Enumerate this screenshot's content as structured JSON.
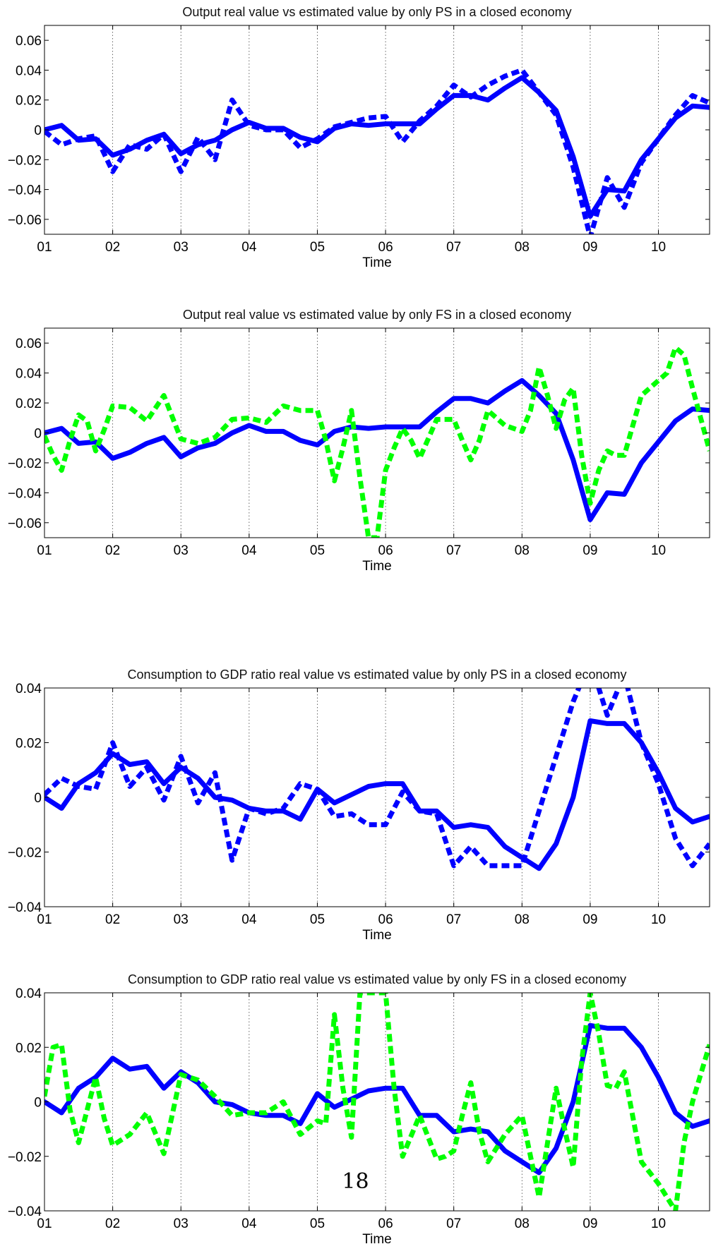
{
  "page_number": "18",
  "colors": {
    "real": "#0000ff",
    "est_ps": "#0000ff",
    "est_fs": "#00ff00"
  },
  "chart_data": [
    {
      "type": "line",
      "title": "Output real value vs estimated value by only PS in a closed economy",
      "xlabel": "Time",
      "ylabel": "",
      "x_ticks": [
        1,
        2,
        3,
        4,
        5,
        6,
        7,
        8,
        9,
        10
      ],
      "x_tick_labels": [
        "01",
        "02",
        "03",
        "04",
        "05",
        "06",
        "07",
        "08",
        "09",
        "10"
      ],
      "xlim": [
        1,
        10.75
      ],
      "ylim": [
        -0.07,
        0.07
      ],
      "y_ticks": [
        -0.06,
        -0.04,
        -0.02,
        0,
        0.02,
        0.04,
        0.06
      ],
      "y_tick_labels": [
        "−0.06",
        "−0.04",
        "−0.02",
        "0",
        "0.02",
        "0.04",
        "0.06"
      ],
      "grid": "x-dotted",
      "series": [
        {
          "style": "solid",
          "color": "#0000ff",
          "x": [
            1,
            1.25,
            1.5,
            1.75,
            2,
            2.25,
            2.5,
            2.75,
            3,
            3.25,
            3.5,
            3.75,
            4,
            4.25,
            4.5,
            4.75,
            5,
            5.25,
            5.5,
            5.75,
            6,
            6.25,
            6.5,
            6.75,
            7,
            7.25,
            7.5,
            7.75,
            8,
            8.25,
            8.5,
            8.75,
            9,
            9.25,
            9.5,
            9.75,
            10,
            10.25,
            10.5,
            10.75
          ],
          "y": [
            0,
            0.003,
            -0.007,
            -0.006,
            -0.017,
            -0.013,
            -0.007,
            -0.003,
            -0.016,
            -0.01,
            -0.007,
            0,
            0.005,
            0.001,
            0.001,
            -0.005,
            -0.008,
            0.001,
            0.004,
            0.003,
            0.004,
            0.004,
            0.004,
            0.014,
            0.023,
            0.023,
            0.02,
            0.028,
            0.035,
            0.025,
            0.013,
            -0.018,
            -0.058,
            -0.04,
            -0.041,
            -0.02,
            -0.006,
            0.008,
            0.016,
            0.015
          ]
        },
        {
          "style": "dashed",
          "color": "#0000ff",
          "x": [
            1,
            1.25,
            1.5,
            1.75,
            2,
            2.25,
            2.5,
            2.75,
            3,
            3.25,
            3.5,
            3.75,
            4,
            4.25,
            4.5,
            4.75,
            5,
            5.25,
            5.5,
            5.75,
            6,
            6.25,
            6.5,
            6.75,
            7,
            7.25,
            7.5,
            7.75,
            8,
            8.25,
            8.5,
            8.75,
            9,
            9.25,
            9.5,
            9.75,
            10,
            10.25,
            10.5,
            10.75
          ],
          "y": [
            -0.001,
            -0.01,
            -0.006,
            -0.004,
            -0.028,
            -0.01,
            -0.013,
            -0.003,
            -0.028,
            -0.005,
            -0.02,
            0.02,
            0.003,
            0,
            0,
            -0.012,
            -0.006,
            0.002,
            0.005,
            0.008,
            0.009,
            -0.008,
            0.006,
            0.016,
            0.03,
            0.022,
            0.03,
            0.036,
            0.04,
            0.025,
            0.01,
            -0.025,
            -0.072,
            -0.032,
            -0.052,
            -0.022,
            -0.006,
            0.01,
            0.023,
            0.018
          ]
        }
      ]
    },
    {
      "type": "line",
      "title": "Output real value vs estimated value by only FS in a closed economy",
      "xlabel": "Time",
      "ylabel": "",
      "x_ticks": [
        1,
        2,
        3,
        4,
        5,
        6,
        7,
        8,
        9,
        10
      ],
      "x_tick_labels": [
        "01",
        "02",
        "03",
        "04",
        "05",
        "06",
        "07",
        "08",
        "09",
        "10"
      ],
      "xlim": [
        1,
        10.75
      ],
      "ylim": [
        -0.07,
        0.07
      ],
      "y_ticks": [
        -0.06,
        -0.04,
        -0.02,
        0,
        0.02,
        0.04,
        0.06
      ],
      "y_tick_labels": [
        "−0.06",
        "−0.04",
        "−0.02",
        "0",
        "0.02",
        "0.04",
        "0.06"
      ],
      "grid": "x-dotted",
      "series": [
        {
          "style": "solid",
          "color": "#0000ff",
          "x": [
            1,
            1.25,
            1.5,
            1.75,
            2,
            2.25,
            2.5,
            2.75,
            3,
            3.25,
            3.5,
            3.75,
            4,
            4.25,
            4.5,
            4.75,
            5,
            5.25,
            5.5,
            5.75,
            6,
            6.25,
            6.5,
            6.75,
            7,
            7.25,
            7.5,
            7.75,
            8,
            8.25,
            8.5,
            8.75,
            9,
            9.25,
            9.5,
            9.75,
            10,
            10.25,
            10.5,
            10.75
          ],
          "y": [
            0,
            0.003,
            -0.007,
            -0.006,
            -0.017,
            -0.013,
            -0.007,
            -0.003,
            -0.016,
            -0.01,
            -0.007,
            0,
            0.005,
            0.001,
            0.001,
            -0.005,
            -0.008,
            0.001,
            0.004,
            0.003,
            0.004,
            0.004,
            0.004,
            0.014,
            0.023,
            0.023,
            0.02,
            0.028,
            0.035,
            0.025,
            0.013,
            -0.018,
            -0.058,
            -0.04,
            -0.041,
            -0.02,
            -0.006,
            0.008,
            0.016,
            0.015
          ]
        },
        {
          "style": "dashed",
          "color": "#00ff00",
          "x": [
            1,
            1.125,
            1.25,
            1.375,
            1.5,
            1.625,
            1.75,
            1.875,
            2,
            2.25,
            2.5,
            2.75,
            3,
            3.25,
            3.5,
            3.75,
            4,
            4.25,
            4.5,
            4.75,
            5,
            5.125,
            5.25,
            5.375,
            5.5,
            5.625,
            5.75,
            5.875,
            6,
            6.125,
            6.25,
            6.375,
            6.5,
            6.75,
            7,
            7.125,
            7.25,
            7.375,
            7.5,
            7.75,
            8,
            8.125,
            8.25,
            8.375,
            8.5,
            8.625,
            8.75,
            8.875,
            9,
            9.125,
            9.25,
            9.375,
            9.5,
            9.75,
            10,
            10.125,
            10.25,
            10.375,
            10.5,
            10.75
          ],
          "y": [
            -0.002,
            -0.015,
            -0.025,
            -0.005,
            0.012,
            0.008,
            -0.012,
            0.002,
            0.018,
            0.017,
            0.008,
            0.025,
            -0.004,
            -0.007,
            -0.003,
            0.009,
            0.01,
            0.007,
            0.018,
            0.015,
            0.015,
            -0.005,
            -0.032,
            -0.01,
            0.015,
            -0.03,
            -0.07,
            -0.07,
            -0.025,
            -0.01,
            0.003,
            -0.005,
            -0.017,
            0.009,
            0.009,
            -0.005,
            -0.018,
            -0.005,
            0.015,
            0.005,
            0.001,
            0.015,
            0.044,
            0.025,
            0.003,
            0.022,
            0.03,
            -0.015,
            -0.047,
            -0.025,
            -0.012,
            -0.015,
            -0.015,
            0.025,
            0.035,
            0.04,
            0.057,
            0.052,
            0.03,
            -0.012
          ]
        }
      ]
    },
    {
      "type": "line",
      "title": "Consumption to GDP ratio real value vs estimated value by only PS in a closed economy",
      "xlabel": "Time",
      "ylabel": "",
      "x_ticks": [
        1,
        2,
        3,
        4,
        5,
        6,
        7,
        8,
        9,
        10
      ],
      "x_tick_labels": [
        "01",
        "02",
        "03",
        "04",
        "05",
        "06",
        "07",
        "08",
        "09",
        "10"
      ],
      "xlim": [
        1,
        10.75
      ],
      "ylim": [
        -0.04,
        0.04
      ],
      "y_ticks": [
        -0.04,
        -0.02,
        0,
        0.02,
        0.04
      ],
      "y_tick_labels": [
        "−0.04",
        "−0.02",
        "0",
        "0.02",
        "0.04"
      ],
      "grid": "x-dotted",
      "series": [
        {
          "style": "solid",
          "color": "#0000ff",
          "x": [
            1,
            1.25,
            1.5,
            1.75,
            2,
            2.25,
            2.5,
            2.75,
            3,
            3.25,
            3.5,
            3.75,
            4,
            4.25,
            4.5,
            4.75,
            5,
            5.25,
            5.5,
            5.75,
            6,
            6.25,
            6.5,
            6.75,
            7,
            7.25,
            7.5,
            7.75,
            8,
            8.25,
            8.5,
            8.75,
            9,
            9.25,
            9.5,
            9.75,
            10,
            10.25,
            10.5,
            10.75
          ],
          "y": [
            0,
            -0.004,
            0.005,
            0.009,
            0.016,
            0.012,
            0.013,
            0.005,
            0.011,
            0.007,
            0,
            -0.001,
            -0.004,
            -0.005,
            -0.005,
            -0.008,
            0.003,
            -0.002,
            0.001,
            0.004,
            0.005,
            0.005,
            -0.005,
            -0.005,
            -0.011,
            -0.01,
            -0.011,
            -0.018,
            -0.022,
            -0.026,
            -0.017,
            0,
            0.028,
            0.027,
            0.027,
            0.02,
            0.009,
            -0.004,
            -0.009,
            -0.007
          ]
        },
        {
          "style": "dashed",
          "color": "#0000ff",
          "x": [
            1,
            1.25,
            1.5,
            1.75,
            2,
            2.25,
            2.5,
            2.75,
            3,
            3.25,
            3.5,
            3.75,
            4,
            4.25,
            4.5,
            4.75,
            5,
            5.25,
            5.5,
            5.75,
            6,
            6.25,
            6.5,
            6.75,
            7,
            7.25,
            7.5,
            7.75,
            8,
            8.25,
            8.5,
            8.75,
            9,
            9.25,
            9.5,
            9.75,
            10,
            10.25,
            10.5,
            10.75
          ],
          "y": [
            0.001,
            0.007,
            0.004,
            0.003,
            0.02,
            0.004,
            0.011,
            -0.001,
            0.015,
            -0.002,
            0.009,
            -0.023,
            -0.004,
            -0.006,
            -0.004,
            0.005,
            0.003,
            -0.007,
            -0.006,
            -0.01,
            -0.01,
            0.002,
            -0.005,
            -0.006,
            -0.025,
            -0.018,
            -0.025,
            -0.025,
            -0.025,
            -0.005,
            0.015,
            0.035,
            0.05,
            0.03,
            0.045,
            0.02,
            0.005,
            -0.015,
            -0.025,
            -0.017
          ]
        }
      ]
    },
    {
      "type": "line",
      "title": "Consumption to GDP ratio real value vs estimated value by only FS in a closed economy",
      "xlabel": "Time",
      "ylabel": "",
      "x_ticks": [
        1,
        2,
        3,
        4,
        5,
        6,
        7,
        8,
        9,
        10
      ],
      "x_tick_labels": [
        "01",
        "02",
        "03",
        "04",
        "05",
        "06",
        "07",
        "08",
        "09",
        "10"
      ],
      "xlim": [
        1,
        10.75
      ],
      "ylim": [
        -0.04,
        0.04
      ],
      "y_ticks": [
        -0.04,
        -0.02,
        0,
        0.02,
        0.04
      ],
      "y_tick_labels": [
        "−0.04",
        "−0.02",
        "0",
        "0.02",
        "0.04"
      ],
      "grid": "x-dotted",
      "series": [
        {
          "style": "solid",
          "color": "#0000ff",
          "x": [
            1,
            1.25,
            1.5,
            1.75,
            2,
            2.25,
            2.5,
            2.75,
            3,
            3.25,
            3.5,
            3.75,
            4,
            4.25,
            4.5,
            4.75,
            5,
            5.25,
            5.5,
            5.75,
            6,
            6.25,
            6.5,
            6.75,
            7,
            7.25,
            7.5,
            7.75,
            8,
            8.25,
            8.5,
            8.75,
            9,
            9.25,
            9.5,
            9.75,
            10,
            10.25,
            10.5,
            10.75
          ],
          "y": [
            0,
            -0.004,
            0.005,
            0.009,
            0.016,
            0.012,
            0.013,
            0.005,
            0.011,
            0.007,
            0,
            -0.001,
            -0.004,
            -0.005,
            -0.005,
            -0.008,
            0.003,
            -0.002,
            0.001,
            0.004,
            0.005,
            0.005,
            -0.005,
            -0.005,
            -0.011,
            -0.01,
            -0.011,
            -0.018,
            -0.022,
            -0.026,
            -0.017,
            0,
            0.028,
            0.027,
            0.027,
            0.02,
            0.009,
            -0.004,
            -0.009,
            -0.007
          ]
        },
        {
          "style": "dashed",
          "color": "#00ff00",
          "x": [
            1,
            1.125,
            1.25,
            1.375,
            1.5,
            1.625,
            1.75,
            1.875,
            2,
            2.25,
            2.5,
            2.75,
            3,
            3.25,
            3.5,
            3.75,
            4,
            4.25,
            4.5,
            4.75,
            5,
            5.125,
            5.25,
            5.375,
            5.5,
            5.625,
            5.75,
            5.875,
            6,
            6.125,
            6.25,
            6.5,
            6.75,
            6.875,
            7,
            7.125,
            7.25,
            7.375,
            7.5,
            7.75,
            8,
            8.125,
            8.25,
            8.375,
            8.5,
            8.625,
            8.75,
            8.875,
            9,
            9.125,
            9.25,
            9.375,
            9.5,
            9.75,
            10,
            10.125,
            10.25,
            10.375,
            10.5,
            10.75
          ],
          "y": [
            0.002,
            0.02,
            0.021,
            -0.003,
            -0.015,
            -0.003,
            0.009,
            -0.006,
            -0.016,
            -0.012,
            -0.004,
            -0.019,
            0.01,
            0.008,
            0.002,
            -0.005,
            -0.004,
            -0.004,
            0,
            -0.012,
            -0.007,
            -0.008,
            0.032,
            0.005,
            -0.013,
            0.04,
            0.04,
            0.04,
            0.04,
            0.005,
            -0.02,
            -0.005,
            -0.021,
            -0.02,
            -0.018,
            -0.005,
            0.007,
            -0.011,
            -0.022,
            -0.012,
            -0.005,
            -0.02,
            -0.035,
            -0.015,
            0.005,
            -0.01,
            -0.024,
            0.015,
            0.04,
            0.025,
            0.006,
            0.005,
            0.011,
            -0.022,
            -0.03,
            -0.035,
            -0.04,
            -0.015,
            0,
            0.021
          ]
        }
      ]
    }
  ]
}
